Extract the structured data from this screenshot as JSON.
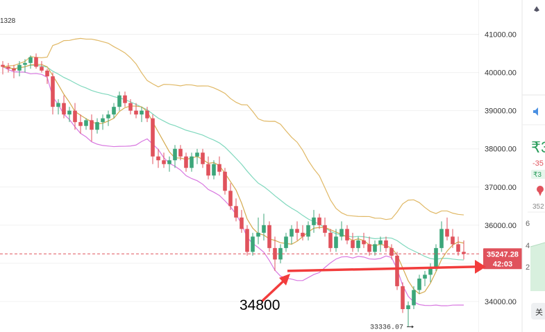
{
  "chart_data": {
    "type": "candlestick",
    "ylim": [
      33200,
      41900
    ],
    "y_ticks": [
      34000,
      35000,
      36000,
      37000,
      38000,
      39000,
      40000,
      41000
    ],
    "y_tick_labels": [
      "34000.00",
      "35000.00",
      "36000.00",
      "37000.00",
      "38000.00",
      "39000.00",
      "40000.00",
      "41000.00"
    ],
    "partial_label_top_left": "1328",
    "current_price_label": "35247.28",
    "current_price": 35247.28,
    "countdown_label": "42:03",
    "low_marker_label": "33336.07",
    "low_marker_value": 33336.07,
    "annotation_label": "34800",
    "annotation_value": 34800,
    "colors": {
      "up": "#3ca67a",
      "down": "#e0525c",
      "bb_upper": "#e0b865",
      "bb_lower": "#d877e0",
      "ma_fast": "#7fd8bd",
      "ma_slow": "#d4a94d",
      "arrow": "#f23c3c"
    },
    "candles": [
      [
        40200,
        40300,
        39950,
        40150
      ],
      [
        40150,
        40250,
        40000,
        40100
      ],
      [
        40100,
        40200,
        39850,
        40050
      ],
      [
        40050,
        40300,
        39900,
        40200
      ],
      [
        40200,
        40350,
        40000,
        40250
      ],
      [
        40250,
        40450,
        40100,
        40400
      ],
      [
        40400,
        40500,
        40100,
        40150
      ],
      [
        40150,
        40300,
        40000,
        40050
      ],
      [
        40050,
        40100,
        39700,
        39900
      ],
      [
        39900,
        40000,
        38900,
        39100
      ],
      [
        39100,
        39300,
        38900,
        39200
      ],
      [
        39200,
        39400,
        38800,
        38900
      ],
      [
        38900,
        39100,
        38700,
        39000
      ],
      [
        39000,
        39200,
        38500,
        38700
      ],
      [
        38700,
        38900,
        38400,
        38600
      ],
      [
        38600,
        38800,
        38500,
        38750
      ],
      [
        38750,
        38900,
        38200,
        38500
      ],
      [
        38500,
        38800,
        38400,
        38700
      ],
      [
        38700,
        38900,
        38500,
        38800
      ],
      [
        38800,
        39000,
        38600,
        38900
      ],
      [
        38900,
        39200,
        38800,
        39100
      ],
      [
        39100,
        39500,
        39000,
        39400
      ],
      [
        39400,
        39500,
        39100,
        39200
      ],
      [
        39200,
        39300,
        38900,
        39000
      ],
      [
        39000,
        39200,
        38800,
        38900
      ],
      [
        38900,
        39100,
        38700,
        39000
      ],
      [
        39000,
        39100,
        38700,
        38800
      ],
      [
        38800,
        38900,
        37600,
        37800
      ],
      [
        37800,
        38000,
        37500,
        37700
      ],
      [
        37700,
        37900,
        37500,
        37600
      ],
      [
        37600,
        37800,
        37400,
        37700
      ],
      [
        37700,
        38100,
        37500,
        38000
      ],
      [
        38000,
        38100,
        37700,
        37800
      ],
      [
        37800,
        37900,
        37400,
        37500
      ],
      [
        37500,
        37900,
        37400,
        37800
      ],
      [
        37800,
        38000,
        37600,
        37900
      ],
      [
        37900,
        38000,
        37500,
        37600
      ],
      [
        37600,
        37800,
        37200,
        37300
      ],
      [
        37300,
        37700,
        37200,
        37600
      ],
      [
        37600,
        37800,
        37300,
        37400
      ],
      [
        37400,
        37500,
        36800,
        36900
      ],
      [
        36900,
        37100,
        36400,
        36500
      ],
      [
        36500,
        36700,
        36100,
        36200
      ],
      [
        36200,
        36400,
        35800,
        35900
      ],
      [
        35900,
        36000,
        35200,
        35300
      ],
      [
        35300,
        35800,
        35200,
        35700
      ],
      [
        35700,
        36200,
        35500,
        35800
      ],
      [
        35800,
        36300,
        35600,
        36000
      ],
      [
        36000,
        36100,
        35300,
        35400
      ],
      [
        35400,
        35700,
        34800,
        35100
      ],
      [
        35100,
        35500,
        35000,
        35400
      ],
      [
        35400,
        35800,
        35300,
        35700
      ],
      [
        35700,
        36000,
        35500,
        35900
      ],
      [
        35900,
        36100,
        35600,
        35800
      ],
      [
        35800,
        36000,
        35600,
        35700
      ],
      [
        35700,
        36100,
        35600,
        36000
      ],
      [
        36000,
        36400,
        35800,
        36200
      ],
      [
        36200,
        36300,
        35900,
        36000
      ],
      [
        36000,
        36200,
        35700,
        35800
      ],
      [
        35800,
        35900,
        35300,
        35400
      ],
      [
        35400,
        35900,
        35300,
        35700
      ],
      [
        35700,
        36100,
        35600,
        35900
      ],
      [
        35900,
        36000,
        35500,
        35600
      ],
      [
        35600,
        35800,
        35300,
        35400
      ],
      [
        35400,
        35700,
        35300,
        35600
      ],
      [
        35600,
        35800,
        35400,
        35500
      ],
      [
        35500,
        35700,
        35200,
        35300
      ],
      [
        35300,
        35600,
        35200,
        35500
      ],
      [
        35500,
        35700,
        35300,
        35600
      ],
      [
        35600,
        35700,
        35300,
        35400
      ],
      [
        35400,
        35500,
        35100,
        35200
      ],
      [
        35200,
        35300,
        34300,
        34400
      ],
      [
        34400,
        34500,
        33700,
        33800
      ],
      [
        33800,
        34000,
        33336.07,
        33900
      ],
      [
        33900,
        34400,
        33800,
        34300
      ],
      [
        34300,
        34700,
        34200,
        34600
      ],
      [
        34600,
        34800,
        34400,
        34700
      ],
      [
        34700,
        35000,
        34500,
        34900
      ],
      [
        34900,
        35500,
        34800,
        35400
      ],
      [
        35400,
        36100,
        35300,
        35900
      ],
      [
        35900,
        36200,
        35600,
        35700
      ],
      [
        35700,
        35900,
        35400,
        35500
      ],
      [
        35500,
        35700,
        35200,
        35300
      ],
      [
        35300,
        35600,
        35100,
        35247.28
      ]
    ]
  },
  "right_panel": {
    "top_icon": "ethereum-icon",
    "speaker_icon": "speaker-icon",
    "price_big": "₹3",
    "change_text": "-35",
    "badge_text": "₹3",
    "pin_icon": "map-pin-icon",
    "small_value": "352",
    "depth_labels": [
      "6",
      "4",
      "2"
    ],
    "bottom_button": "关"
  }
}
